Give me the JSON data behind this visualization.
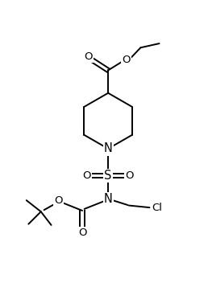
{
  "bg_color": "#ffffff",
  "line_color": "#000000",
  "line_width": 1.4,
  "font_size": 9.5,
  "fig_width": 2.58,
  "fig_height": 3.52,
  "dpi": 100,
  "xlim": [
    0,
    10
  ],
  "ylim": [
    0,
    13.6
  ]
}
